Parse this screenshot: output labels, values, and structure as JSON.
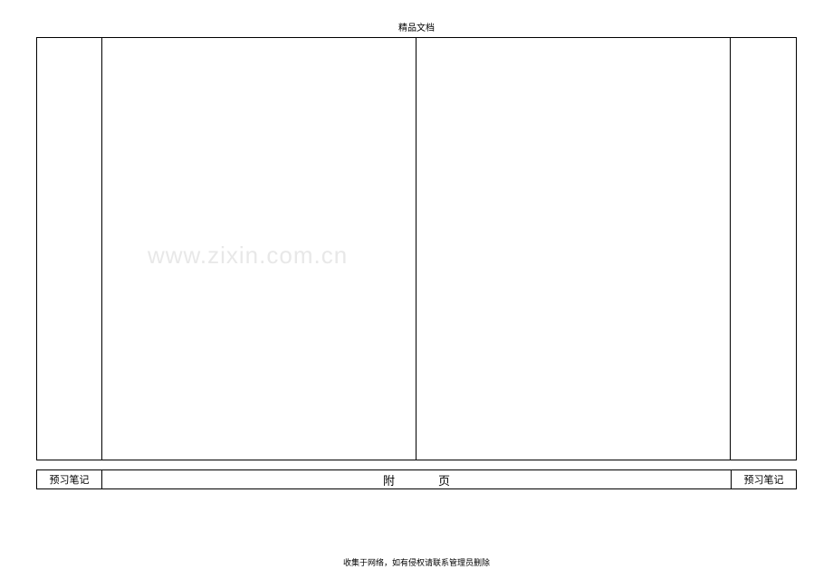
{
  "header": {
    "title": "精品文档"
  },
  "watermark": {
    "text": "www.zixin.com.cn"
  },
  "footer_row": {
    "left_label": "预习笔记",
    "mid_char1": "附",
    "mid_char2": "页",
    "right_label": "预习笔记"
  },
  "page_footer": {
    "text": "收集于网络，如有侵权请联系管理员删除"
  },
  "colors": {
    "border": "#000000",
    "background": "#ffffff",
    "text": "#000000",
    "watermark": "#e8e8e8"
  }
}
